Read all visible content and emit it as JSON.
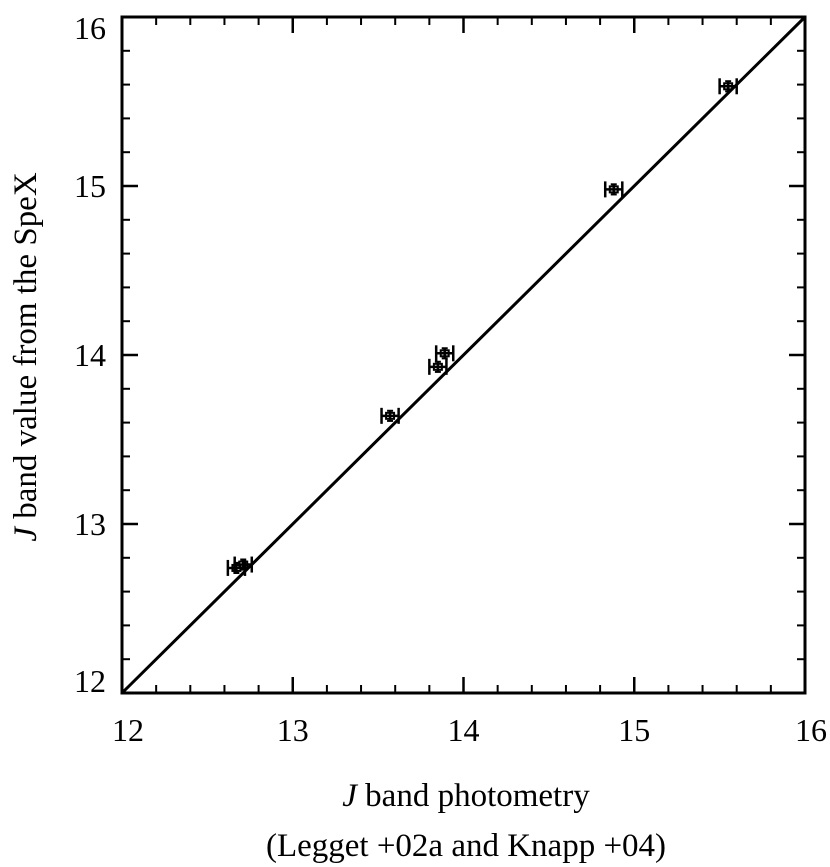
{
  "chart_data": {
    "type": "scatter",
    "xlabel": {
      "italic": "J",
      "rest": " band photometry",
      "line2": "(Legget +02a and Knapp +04)"
    },
    "ylabel": {
      "italic": "J",
      "rest": " band value from the SpeX"
    },
    "xlim": [
      12,
      16
    ],
    "ylim": [
      12,
      16
    ],
    "x_ticks": [
      12,
      13,
      14,
      15,
      16
    ],
    "y_ticks": [
      12,
      13,
      14,
      15,
      16
    ],
    "x_tick_labels": [
      "12",
      "13",
      "14",
      "15",
      "16"
    ],
    "y_tick_labels": [
      "12",
      "13",
      "14",
      "15",
      "16"
    ],
    "minor_tick_step": 0.2,
    "grid": false,
    "reference_line": {
      "x": [
        12,
        16
      ],
      "y": [
        12,
        16
      ]
    },
    "points": [
      {
        "x": 12.67,
        "y": 12.74,
        "xerr": 0.05,
        "yerr": 0.03
      },
      {
        "x": 12.71,
        "y": 12.76,
        "xerr": 0.05,
        "yerr": 0.03
      },
      {
        "x": 13.57,
        "y": 13.64,
        "xerr": 0.05,
        "yerr": 0.03
      },
      {
        "x": 13.85,
        "y": 13.93,
        "xerr": 0.05,
        "yerr": 0.03
      },
      {
        "x": 13.89,
        "y": 14.01,
        "xerr": 0.05,
        "yerr": 0.03
      },
      {
        "x": 14.88,
        "y": 14.98,
        "xerr": 0.05,
        "yerr": 0.03
      },
      {
        "x": 15.55,
        "y": 15.59,
        "xerr": 0.05,
        "yerr": 0.03
      }
    ]
  }
}
